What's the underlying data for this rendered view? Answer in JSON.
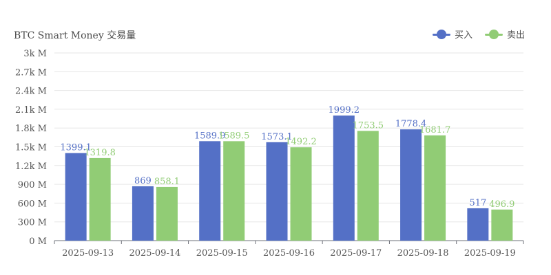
{
  "chart_title": "BTC Smart Money 交易量",
  "legend": [
    {
      "label": "买入",
      "color": "#5470c6"
    },
    {
      "label": "卖出",
      "color": "#91cc75"
    }
  ],
  "chart_data": {
    "type": "bar",
    "title": "BTC Smart Money 交易量",
    "categories": [
      "2025-09-13",
      "2025-09-14",
      "2025-09-15",
      "2025-09-16",
      "2025-09-17",
      "2025-09-18",
      "2025-09-19"
    ],
    "series": [
      {
        "name": "买入",
        "color": "#5470c6",
        "values": [
          1399.1,
          869,
          1589.9,
          1573.1,
          1999.2,
          1778.4,
          517
        ]
      },
      {
        "name": "卖出",
        "color": "#91cc75",
        "values": [
          1319.8,
          858.1,
          1589.5,
          1492.2,
          1753.5,
          1681.7,
          496.9
        ]
      }
    ],
    "yticks": [
      0,
      300,
      600,
      900,
      1200,
      1500,
      1800,
      2100,
      2400,
      2700,
      3000
    ],
    "ytick_labels": [
      "0 M",
      "300 M",
      "600 M",
      "900 M",
      "1.2k M",
      "1.5k M",
      "1.8k M",
      "2.1k M",
      "2.4k M",
      "2.7k M",
      "3k M"
    ],
    "ylim": [
      0,
      3000
    ],
    "grid": true,
    "legend_position": "top-right"
  }
}
